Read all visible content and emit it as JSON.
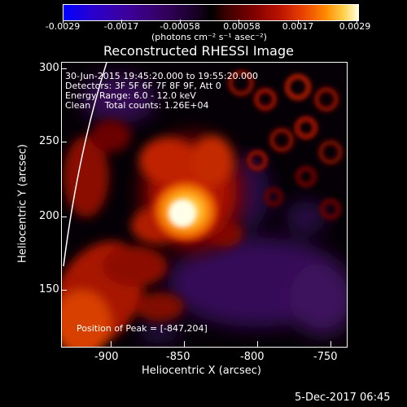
{
  "colorbar": {
    "ticks": [
      "-0.0029",
      "-0.0017",
      "-0.00058",
      "0.00058",
      "0.0017",
      "0.0029"
    ],
    "units": "(photons cm⁻² s⁻¹ asec⁻²)"
  },
  "title": "Reconstructed RHESSI Image",
  "info": {
    "time_range": "30-Jun-2015 19:45:20.000 to 19:55:20.000",
    "detectors": "Detectors: 3F 5F 6F 7F 8F 9F, Att 0",
    "energy": "Energy Range: 6.0 - 12.0 keV",
    "clean": "Clean     Total counts: 1.26E+04",
    "peak": "Position of Peak = [-847,204]"
  },
  "x_axis": {
    "label": "Heliocentric X (arcsec)",
    "ticks": [
      "-900",
      "-850",
      "-800",
      "-750"
    ]
  },
  "y_axis": {
    "label": "Heliocentric Y (arcsec)",
    "ticks": [
      "300",
      "250",
      "200",
      "150"
    ]
  },
  "footer_timestamp": "5-Dec-2017 06:45"
}
